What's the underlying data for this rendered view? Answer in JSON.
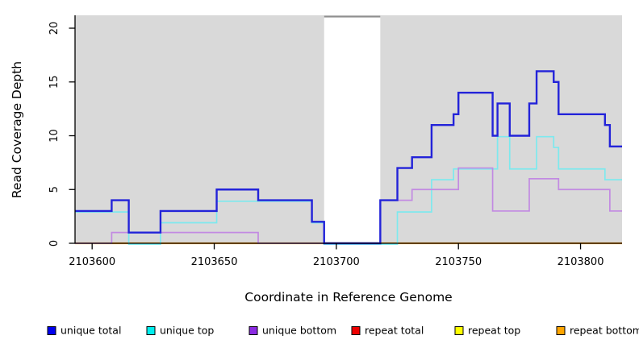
{
  "chart_data": {
    "type": "line",
    "subtype": "step",
    "title": "",
    "xlabel": "Coordinate in Reference Genome",
    "ylabel": "Read Coverage Depth",
    "xlim": [
      2103593,
      2103817
    ],
    "ylim": [
      0,
      21
    ],
    "x_ticks": [
      2103600,
      2103650,
      2103700,
      2103750,
      2103800
    ],
    "y_ticks": [
      0,
      5,
      10,
      15,
      20
    ],
    "grid": "off",
    "panel_background": "#d9d9d9",
    "masked_region": {
      "x_start": 2103695,
      "x_end": 2103718,
      "fill": "#ffffff",
      "top_line_color": "#8f8f8f"
    },
    "legend_position": "bottom",
    "series": [
      {
        "name": "unique total",
        "line_color": "#2323d9",
        "legend_color": "#0000ee",
        "steps": [
          [
            2103593,
            3
          ],
          [
            2103608,
            4
          ],
          [
            2103615,
            1
          ],
          [
            2103628,
            3
          ],
          [
            2103651,
            5
          ],
          [
            2103668,
            4
          ],
          [
            2103690,
            2
          ],
          [
            2103695,
            0
          ],
          [
            2103718,
            4
          ],
          [
            2103725,
            7
          ],
          [
            2103731,
            8
          ],
          [
            2103739,
            11
          ],
          [
            2103748,
            12
          ],
          [
            2103750,
            14
          ],
          [
            2103764,
            10
          ],
          [
            2103766,
            13
          ],
          [
            2103771,
            10
          ],
          [
            2103779,
            13
          ],
          [
            2103782,
            16
          ],
          [
            2103789,
            15
          ],
          [
            2103791,
            12
          ],
          [
            2103810,
            11
          ],
          [
            2103812,
            9
          ]
        ]
      },
      {
        "name": "unique top",
        "line_color": "#7de9ee",
        "legend_color": "#00eeee",
        "steps": [
          [
            2103593,
            3
          ],
          [
            2103615,
            0
          ],
          [
            2103628,
            2
          ],
          [
            2103651,
            4
          ],
          [
            2103690,
            2
          ],
          [
            2103695,
            0
          ],
          [
            2103725,
            3
          ],
          [
            2103739,
            6
          ],
          [
            2103748,
            7
          ],
          [
            2103766,
            10
          ],
          [
            2103771,
            7
          ],
          [
            2103782,
            10
          ],
          [
            2103789,
            9
          ],
          [
            2103791,
            7
          ],
          [
            2103810,
            6
          ]
        ]
      },
      {
        "name": "unique bottom",
        "line_color": "#c28ae2",
        "legend_color": "#8b2be2",
        "steps": [
          [
            2103593,
            0
          ],
          [
            2103608,
            1
          ],
          [
            2103668,
            0
          ],
          [
            2103718,
            4
          ],
          [
            2103731,
            5
          ],
          [
            2103750,
            7
          ],
          [
            2103764,
            3
          ],
          [
            2103779,
            6
          ],
          [
            2103791,
            5
          ],
          [
            2103812,
            3
          ]
        ]
      },
      {
        "name": "repeat total",
        "line_color": "#ee2222",
        "legend_color": "#ee0000",
        "steps": [
          [
            2103593,
            0
          ]
        ]
      },
      {
        "name": "repeat top",
        "line_color": "#ffff33",
        "legend_color": "#ffff00",
        "steps": [
          [
            2103593,
            0
          ]
        ]
      },
      {
        "name": "repeat bottom",
        "line_color": "#ffa51e",
        "legend_color": "#ffa500",
        "steps": [
          [
            2103593,
            0
          ]
        ]
      }
    ],
    "draw_order": [
      "repeat total",
      "repeat top",
      "repeat bottom",
      "unique top",
      "unique bottom",
      "unique total"
    ]
  }
}
